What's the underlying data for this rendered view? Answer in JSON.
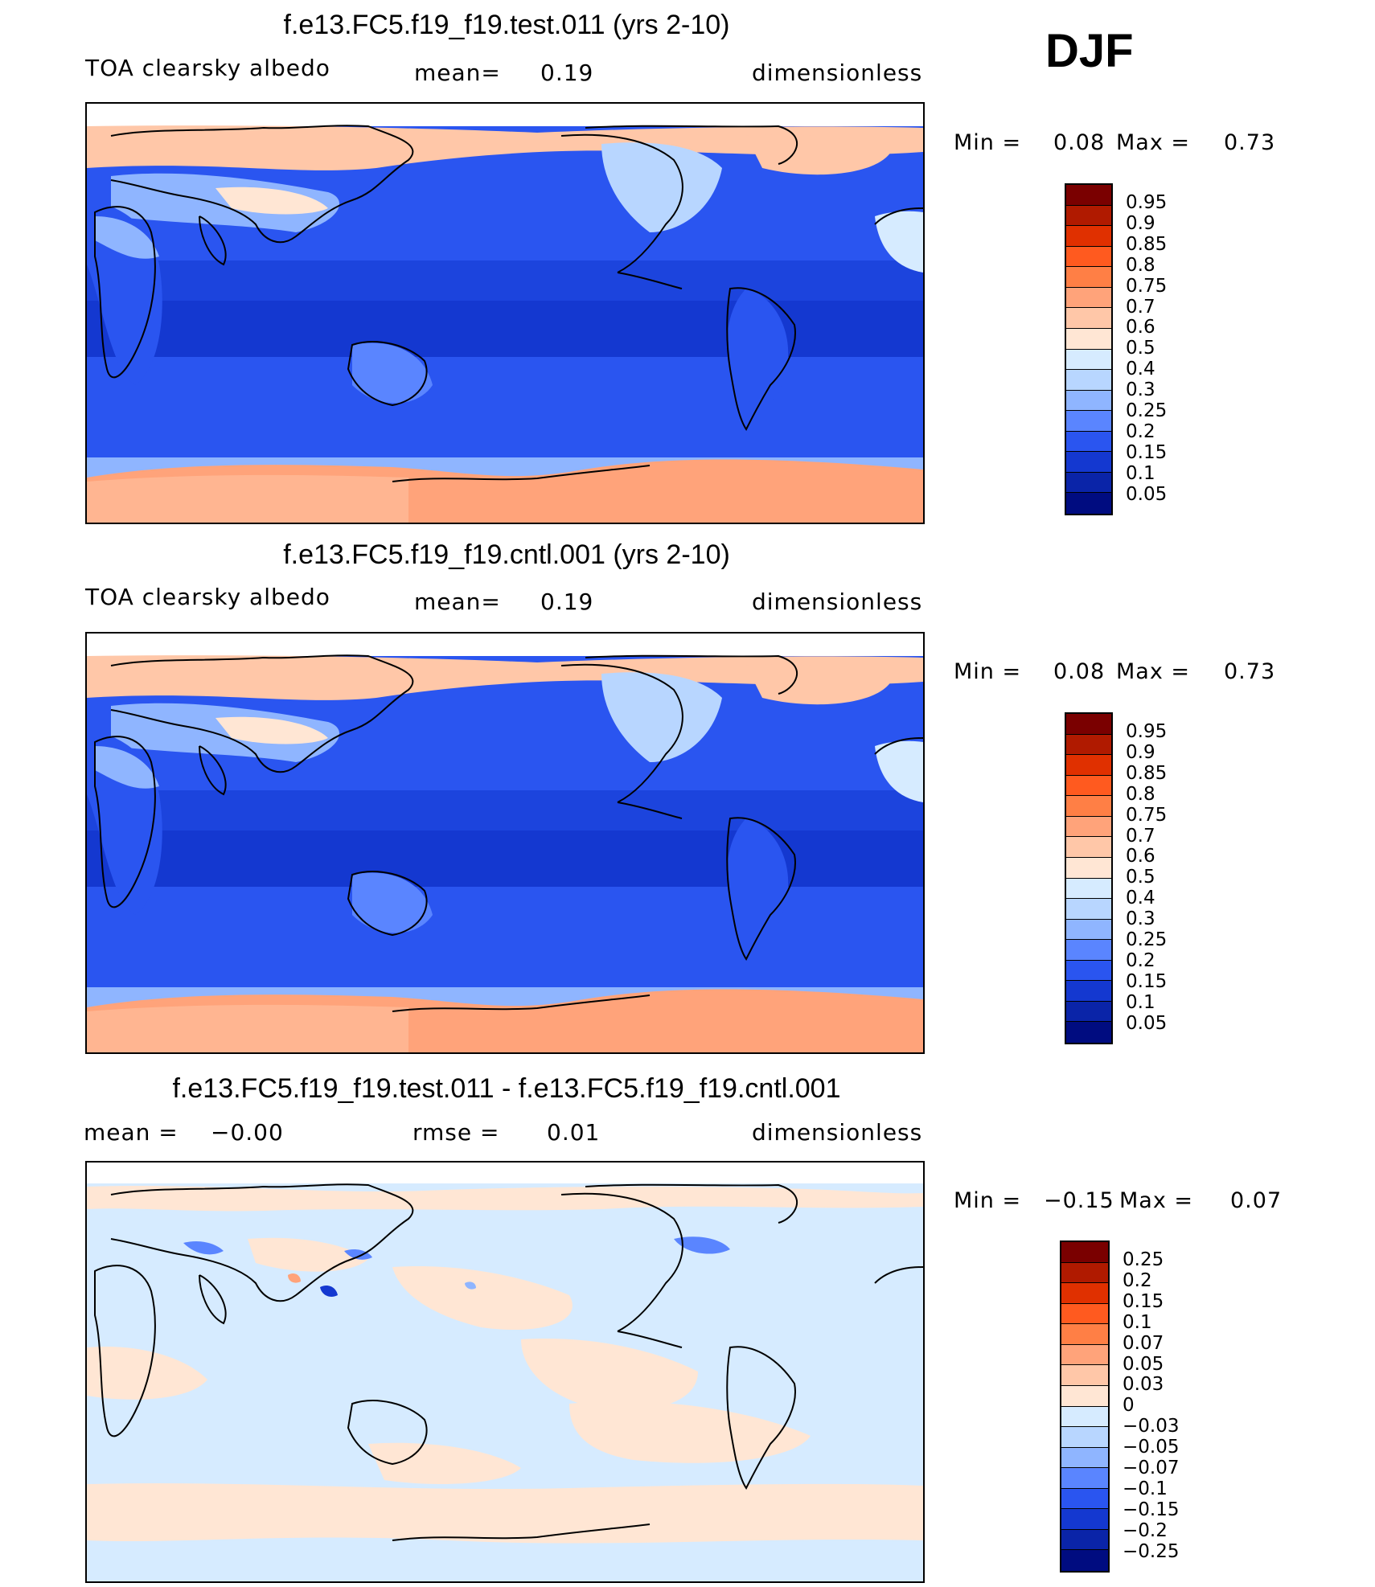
{
  "season": "DJF",
  "panels": [
    {
      "title": "f.e13.FC5.f19_f19.test.011 (yrs 2-10)",
      "left_label": "TOA clearsky albedo",
      "mid_label": "mean=",
      "mid_value": "0.19",
      "units": "dimensionless",
      "min_label": "Min =",
      "min_value": "0.08",
      "max_label": "Max =",
      "max_value": "0.73",
      "colorbar": [
        "0.95",
        "0.9",
        "0.85",
        "0.8",
        "0.75",
        "0.7",
        "0.6",
        "0.5",
        "0.4",
        "0.3",
        "0.25",
        "0.2",
        "0.15",
        "0.1",
        "0.05"
      ]
    },
    {
      "title": "f.e13.FC5.f19_f19.cntl.001 (yrs 2-10)",
      "left_label": "TOA clearsky albedo",
      "mid_label": "mean=",
      "mid_value": "0.19",
      "units": "dimensionless",
      "min_label": "Min =",
      "min_value": "0.08",
      "max_label": "Max =",
      "max_value": "0.73",
      "colorbar": [
        "0.95",
        "0.9",
        "0.85",
        "0.8",
        "0.75",
        "0.7",
        "0.6",
        "0.5",
        "0.4",
        "0.3",
        "0.25",
        "0.2",
        "0.15",
        "0.1",
        "0.05"
      ]
    },
    {
      "title": "f.e13.FC5.f19_f19.test.011 - f.e13.FC5.f19_f19.cntl.001",
      "left_label": "mean =",
      "left_value": "−0.00",
      "mid_label": "rmse =",
      "mid_value": "0.01",
      "units": "dimensionless",
      "min_label": "Min =",
      "min_value": "−0.15",
      "max_label": "Max =",
      "max_value": "0.07",
      "colorbar": [
        "0.25",
        "0.2",
        "0.15",
        "0.1",
        "0.07",
        "0.05",
        "0.03",
        "0",
        "−0.03",
        "−0.05",
        "−0.07",
        "−0.1",
        "−0.15",
        "−0.2",
        "−0.25"
      ]
    }
  ],
  "colors": {
    "seq": [
      "#7a0000",
      "#b01a00",
      "#e03000",
      "#ff5a1f",
      "#ff7f45",
      "#ffa37a",
      "#ffc7a8",
      "#ffe6d4",
      "#d6ebff",
      "#b8d6ff",
      "#8fb5ff",
      "#5a85ff",
      "#2a55f0",
      "#1438d0",
      "#0a24a8",
      "#000c80"
    ],
    "div": [
      "#7a0000",
      "#b01a00",
      "#e03000",
      "#ff5a1f",
      "#ff7f45",
      "#ffa37a",
      "#ffc7a8",
      "#ffe6d4",
      "#d6ebff",
      "#b8d6ff",
      "#8fb5ff",
      "#5a85ff",
      "#2a55f0",
      "#1438d0",
      "#0a24a8",
      "#000c80"
    ]
  }
}
